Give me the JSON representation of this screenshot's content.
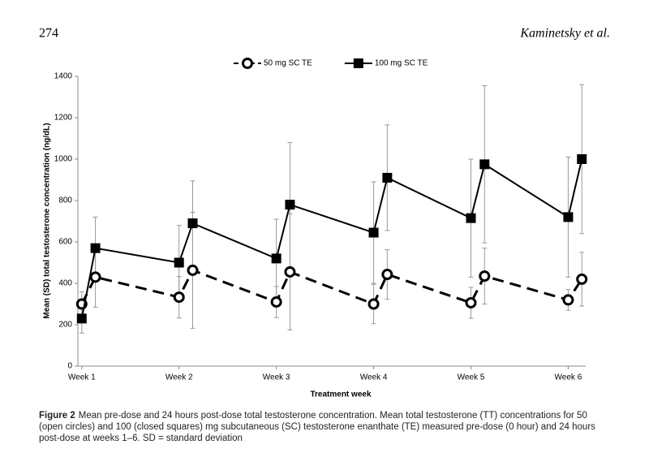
{
  "header": {
    "page_number": "274",
    "running_head": "Kaminetsky et al."
  },
  "chart_data": {
    "type": "line",
    "xlabel": "Treatment week",
    "ylabel": "Mean (SD) total testosterone concentration (ng/dL)",
    "x": [
      1,
      1.14,
      2,
      2.14,
      3,
      3.14,
      4,
      4.14,
      5,
      5.14,
      6,
      6.14
    ],
    "xlim": [
      0.96,
      6.18
    ],
    "xticks": [
      {
        "value": 1,
        "label": "Week 1"
      },
      {
        "value": 2,
        "label": "Week 2"
      },
      {
        "value": 3,
        "label": "Week 3"
      },
      {
        "value": 4,
        "label": "Week 4"
      },
      {
        "value": 5,
        "label": "Week 5"
      },
      {
        "value": 6,
        "label": "Week 6"
      }
    ],
    "ylim": [
      0,
      1400
    ],
    "yticks": [
      0,
      200,
      400,
      600,
      800,
      1000,
      1200,
      1400
    ],
    "legend": "top",
    "series": [
      {
        "name": "50 mg SC TE",
        "color": "#000000",
        "marker": "open-circle",
        "dash": true,
        "values": [
          300,
          430,
          333,
          463,
          310,
          455,
          300,
          443,
          306,
          435,
          320,
          420
        ],
        "errors": [
          60,
          145,
          100,
          280,
          75,
          280,
          95,
          120,
          75,
          135,
          50,
          130
        ]
      },
      {
        "name": "100 mg SC TE",
        "color": "#000000",
        "marker": "filled-square",
        "dash": false,
        "values": [
          230,
          570,
          500,
          690,
          520,
          780,
          645,
          910,
          715,
          975,
          720,
          1000
        ],
        "errors": [
          70,
          150,
          180,
          205,
          190,
          300,
          245,
          255,
          285,
          380,
          290,
          360
        ]
      }
    ]
  },
  "caption": {
    "label": "Figure 2",
    "text": "Mean pre-dose and 24 hours post-dose total testosterone concentration. Mean total testosterone (TT) concentrations for 50 (open circles) and 100 (closed squares) mg subcutaneous (SC) testosterone enanthate (TE) measured pre-dose (0 hour) and 24 hours post-dose at weeks 1–6. SD = standard deviation"
  }
}
